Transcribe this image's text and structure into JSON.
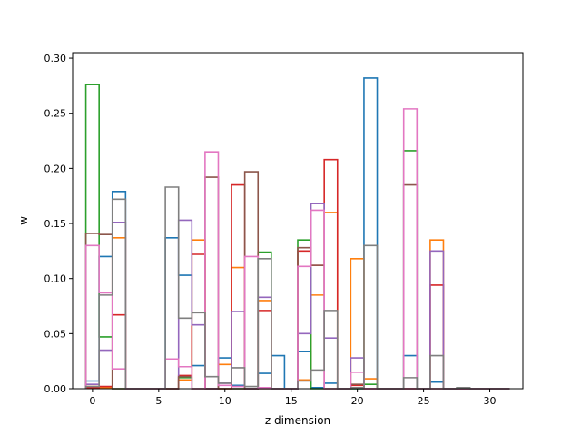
{
  "chart_data": {
    "type": "step",
    "title": "",
    "xlabel": "z dimension",
    "ylabel": "w",
    "xlim": [
      -1.5,
      32.5
    ],
    "ylim": [
      0,
      0.305
    ],
    "xticks": [
      0,
      5,
      10,
      15,
      20,
      25,
      30
    ],
    "yticks": [
      0.0,
      0.05,
      0.1,
      0.15,
      0.2,
      0.25,
      0.3
    ],
    "xtick_labels": [
      "0",
      "5",
      "10",
      "15",
      "20",
      "25",
      "30"
    ],
    "ytick_labels": [
      "0.00",
      "0.05",
      "0.10",
      "0.15",
      "0.20",
      "0.25",
      "0.30"
    ],
    "grid": false,
    "legend": "none",
    "bin_edges": [
      -0.5,
      0.5,
      1.5,
      2.5,
      3.5,
      4.5,
      5.5,
      6.5,
      7.5,
      8.5,
      9.5,
      10.5,
      11.5,
      12.5,
      13.5,
      14.5,
      15.5,
      16.5,
      17.5,
      18.5,
      19.5,
      20.5,
      21.5,
      22.5,
      23.5,
      24.5,
      25.5,
      26.5,
      27.5,
      28.5,
      29.5,
      30.5,
      31.5
    ],
    "series": [
      {
        "color": "#1f77b4",
        "values": [
          0.007,
          0.12,
          0.179,
          0,
          0,
          0,
          0.137,
          0.103,
          0.021,
          0,
          0.028,
          0.003,
          0,
          0.014,
          0.03,
          0,
          0.034,
          0.001,
          0.005,
          0,
          0,
          0.282,
          0,
          0,
          0.03,
          0,
          0.006,
          0,
          0,
          0,
          0,
          0
        ]
      },
      {
        "color": "#ff7f0e",
        "values": [
          0.002,
          0.001,
          0.137,
          0,
          0,
          0,
          0,
          0.008,
          0.135,
          0,
          0.022,
          0.11,
          0,
          0.08,
          0,
          0,
          0.008,
          0.085,
          0.16,
          0,
          0.118,
          0.009,
          0,
          0,
          0,
          0,
          0.135,
          0,
          0,
          0,
          0,
          0
        ]
      },
      {
        "color": "#2ca02c",
        "values": [
          0.276,
          0.047,
          0,
          0,
          0,
          0,
          0,
          0.01,
          0,
          0,
          0,
          0,
          0,
          0.124,
          0,
          0,
          0.135,
          0,
          0,
          0,
          0,
          0.004,
          0,
          0,
          0.216,
          0,
          0,
          0,
          0,
          0,
          0,
          0
        ]
      },
      {
        "color": "#d62728",
        "values": [
          0.001,
          0.002,
          0.067,
          0,
          0,
          0,
          0,
          0.012,
          0.122,
          0,
          0,
          0.185,
          0,
          0.071,
          0,
          0,
          0.125,
          0.112,
          0.208,
          0,
          0.003,
          0,
          0,
          0,
          0,
          0,
          0.094,
          0,
          0,
          0,
          0,
          0
        ]
      },
      {
        "color": "#9467bd",
        "values": [
          0.004,
          0.035,
          0.151,
          0,
          0,
          0,
          0,
          0.153,
          0.058,
          0,
          0.005,
          0.07,
          0,
          0.083,
          0,
          0,
          0.05,
          0.168,
          0.046,
          0,
          0.028,
          0,
          0,
          0,
          0,
          0,
          0.125,
          0,
          0,
          0,
          0,
          0
        ]
      },
      {
        "color": "#8c564b",
        "values": [
          0.141,
          0.14,
          0,
          0,
          0,
          0,
          0,
          0.011,
          0,
          0.192,
          0,
          0,
          0.197,
          0,
          0,
          0,
          0.128,
          0.112,
          0,
          0,
          0.004,
          0,
          0,
          0,
          0.185,
          0,
          0,
          0,
          0,
          0,
          0,
          0
        ]
      },
      {
        "color": "#e377c2",
        "values": [
          0.13,
          0.087,
          0.018,
          0,
          0,
          0,
          0.027,
          0.02,
          0,
          0.215,
          0.003,
          0.002,
          0.12,
          0.001,
          0,
          0,
          0.111,
          0.162,
          0,
          0,
          0.015,
          0,
          0,
          0,
          0.254,
          0,
          0,
          0,
          0,
          0,
          0,
          0
        ]
      },
      {
        "color": "#7f7f7f",
        "values": [
          0.002,
          0.085,
          0.172,
          0,
          0,
          0,
          0.183,
          0.064,
          0.069,
          0.011,
          0.005,
          0.019,
          0.002,
          0.118,
          0,
          0,
          0.007,
          0.017,
          0.071,
          0,
          0.001,
          0.13,
          0,
          0,
          0.01,
          0,
          0.03,
          0,
          0.001,
          0,
          0,
          0
        ]
      }
    ]
  }
}
